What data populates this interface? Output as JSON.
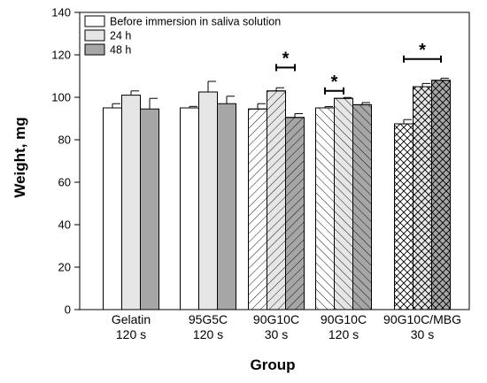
{
  "chart_data": {
    "type": "bar",
    "xlabel": "Group",
    "ylabel": "Weight, mg",
    "ylim": [
      0,
      140
    ],
    "yticks": [
      0,
      20,
      40,
      60,
      80,
      100,
      120,
      140
    ],
    "grid": false,
    "legend_position": "top-left",
    "categories": [
      {
        "lines": [
          "Gelatin",
          "120 s"
        ]
      },
      {
        "lines": [
          "95G5C",
          "120 s"
        ]
      },
      {
        "lines": [
          "90G10C",
          "30 s"
        ]
      },
      {
        "lines": [
          "90G10C",
          "120 s"
        ]
      },
      {
        "lines": [
          "90G10C/MBG",
          "30 s"
        ]
      }
    ],
    "series": [
      {
        "name": "Before immersion in saliva solution",
        "values": [
          95,
          95,
          94.5,
          95,
          87.5
        ],
        "errors": [
          2,
          0.7,
          2.5,
          0.6,
          2
        ]
      },
      {
        "name": "24 h",
        "values": [
          101,
          102.5,
          103,
          99.5,
          105
        ],
        "errors": [
          2,
          5,
          1.5,
          0.4,
          1.5
        ]
      },
      {
        "name": "48 h",
        "values": [
          94.5,
          97,
          90.5,
          96.5,
          108
        ],
        "errors": [
          5,
          3.5,
          1.8,
          1,
          1
        ]
      }
    ],
    "group_styles": [
      {
        "fills": [
          "#ffffff",
          "#e6e6e6",
          "#a6a6a6"
        ],
        "pattern": "none"
      },
      {
        "fills": [
          "#ffffff",
          "#e6e6e6",
          "#a6a6a6"
        ],
        "pattern": "none"
      },
      {
        "fills": [
          "#ffffff",
          "#e6e6e6",
          "#a6a6a6"
        ],
        "pattern": "diag-right"
      },
      {
        "fills": [
          "#ffffff",
          "#e6e6e6",
          "#a6a6a6"
        ],
        "pattern": "diag-left"
      },
      {
        "fills": [
          "#ffffff",
          "#e6e6e6",
          "#a6a6a6"
        ],
        "pattern": "cross"
      }
    ],
    "significance": [
      {
        "group": 2,
        "from_series": 1,
        "to_series": 2,
        "y": 114,
        "label": "*"
      },
      {
        "group": 3,
        "from_series": 0,
        "to_series": 1,
        "y": 103,
        "label": "*"
      },
      {
        "group": 4,
        "from_series": 0,
        "to_series": 2,
        "y": 118,
        "label": "*"
      }
    ]
  }
}
